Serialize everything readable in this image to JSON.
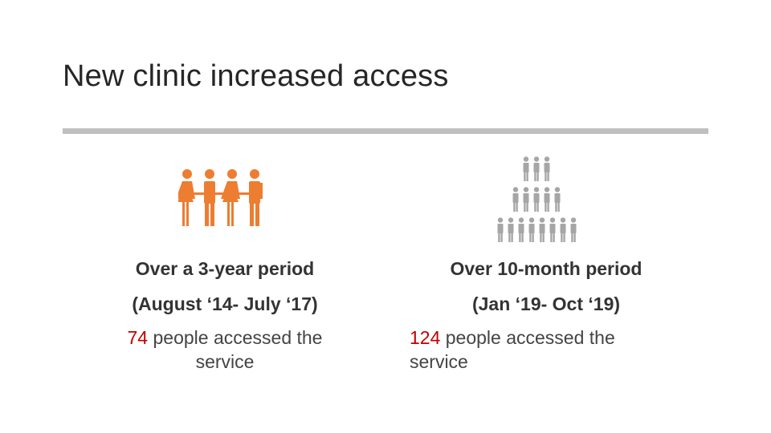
{
  "slide": {
    "title": "New clinic increased access"
  },
  "left": {
    "period": "Over a 3-year period",
    "range": "(August ‘14- July ‘17)",
    "count": "74",
    "text1": " people accessed the",
    "text2": "service",
    "icon_color": "#ED7D31"
  },
  "right": {
    "period": "Over 10-month period",
    "range": "(Jan ‘19- Oct ‘19)",
    "count": "124",
    "text1": " people accessed the",
    "text2": "service",
    "icon_color": "#A6A6A6"
  }
}
